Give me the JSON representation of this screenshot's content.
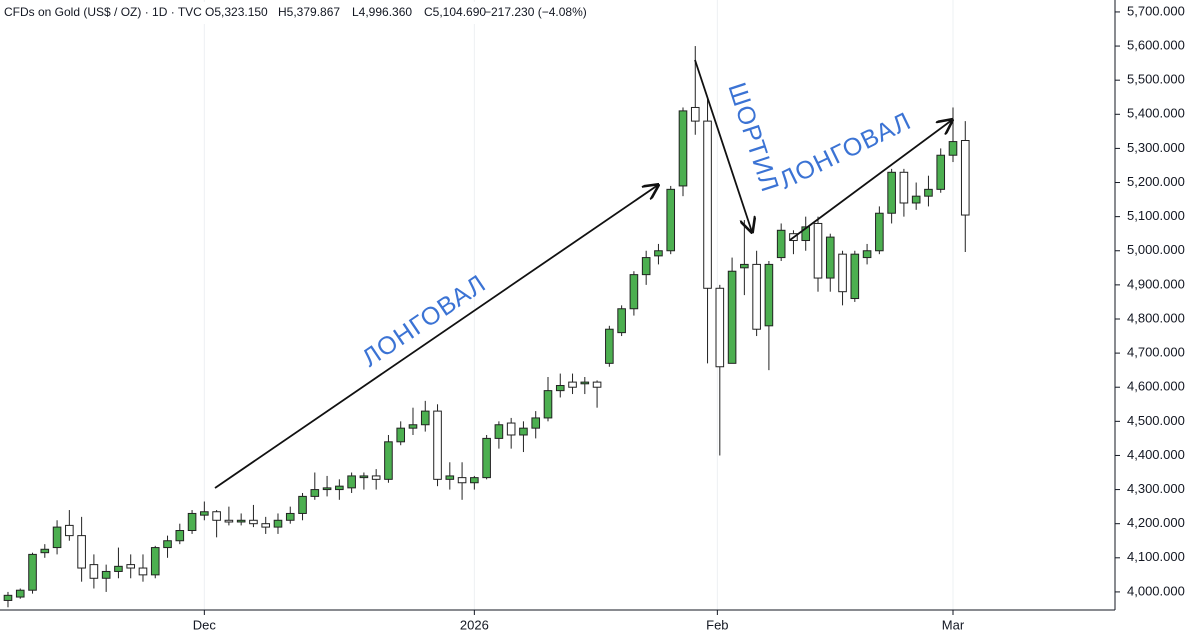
{
  "chart_data": {
    "type": "candlestick",
    "header": {
      "symbol": "CFDs on Gold (US$ / OZ) · 1D · TVC",
      "ohlc": [
        "O5,323.150",
        "H5,379.867",
        "L4,996.360",
        "C5,104.690"
      ],
      "change": "−217.230 (−4.08%)"
    },
    "annotations": [
      "ЛОНГОВАЛ",
      "ШОРТИЛ",
      "ЛОНГОВАЛ"
    ],
    "categories": [
      null,
      null,
      null,
      null,
      null,
      null,
      null,
      null,
      null,
      null,
      null,
      null,
      null,
      null,
      null,
      null,
      null,
      null,
      null,
      null,
      null,
      null,
      null,
      null,
      null,
      null,
      null,
      null,
      null,
      null,
      null,
      null,
      null,
      null,
      null,
      null,
      null,
      null,
      null,
      null,
      null,
      null,
      null,
      null,
      null,
      null,
      null,
      null,
      null,
      null,
      null,
      null,
      null,
      null,
      null,
      null,
      null,
      null,
      null,
      null,
      null,
      null,
      null,
      null,
      null,
      null,
      null,
      null,
      null,
      null,
      null,
      null,
      null,
      null,
      null,
      null,
      null,
      null,
      null
    ],
    "open": [
      3975,
      3985,
      4005,
      4115,
      4130,
      4195,
      4165,
      4080,
      4040,
      4060,
      4080,
      4070,
      4050,
      4130,
      4150,
      4180,
      4225,
      4235,
      4210,
      4205,
      4210,
      4200,
      4190,
      4210,
      4230,
      4280,
      4300,
      4300,
      4305,
      4335,
      4340,
      4330,
      4440,
      4480,
      4490,
      4530,
      4330,
      4335,
      4320,
      4335,
      4450,
      4495,
      4460,
      4480,
      4510,
      4590,
      4615,
      4610,
      4615,
      4670,
      4760,
      4830,
      4930,
      4985,
      5000,
      5190,
      5420,
      5380,
      4890,
      4670,
      4950,
      4960,
      4780,
      4980,
      5050,
      5030,
      5080,
      4920,
      4990,
      4860,
      4980,
      5000,
      5110,
      5230,
      5140,
      5160,
      5180,
      5280,
      5323.15
    ],
    "high": [
      4000,
      4010,
      4115,
      4140,
      4210,
      4240,
      4220,
      4110,
      4080,
      4130,
      4110,
      4110,
      4135,
      4165,
      4200,
      4240,
      4265,
      4240,
      4250,
      4230,
      4255,
      4220,
      4230,
      4250,
      4290,
      4350,
      4340,
      4330,
      4350,
      4350,
      4360,
      4460,
      4500,
      4540,
      4560,
      4550,
      4380,
      4380,
      4340,
      4460,
      4500,
      4510,
      4500,
      4530,
      4630,
      4640,
      4640,
      4630,
      4620,
      4780,
      4840,
      4940,
      5000,
      5020,
      5190,
      5420,
      5600,
      5450,
      4900,
      4980,
      5090,
      5000,
      4970,
      5080,
      5060,
      5100,
      5100,
      5050,
      5000,
      5000,
      5020,
      5130,
      5240,
      5240,
      5200,
      5220,
      5300,
      5420,
      5379.867
    ],
    "low": [
      3955,
      3980,
      3995,
      4100,
      4110,
      4150,
      4030,
      4010,
      4000,
      4040,
      4040,
      4030,
      4040,
      4100,
      4140,
      4170,
      4210,
      4160,
      4195,
      4195,
      4190,
      4170,
      4170,
      4200,
      4210,
      4270,
      4280,
      4270,
      4290,
      4300,
      4300,
      4320,
      4430,
      4460,
      4470,
      4310,
      4300,
      4270,
      4300,
      4330,
      4420,
      4420,
      4410,
      4450,
      4500,
      4570,
      4580,
      4580,
      4540,
      4660,
      4750,
      4810,
      4900,
      4960,
      4990,
      5160,
      5340,
      4670,
      4400,
      4670,
      4870,
      4750,
      4650,
      4970,
      4990,
      5000,
      4880,
      4880,
      4840,
      4850,
      4960,
      4990,
      5080,
      5100,
      5120,
      5130,
      5170,
      5260,
      4996.36
    ],
    "close": [
      3990,
      4005,
      4110,
      4125,
      4190,
      4165,
      4070,
      4040,
      4060,
      4075,
      4070,
      4050,
      4130,
      4150,
      4180,
      4230,
      4235,
      4210,
      4205,
      4210,
      4200,
      4190,
      4210,
      4230,
      4280,
      4300,
      4305,
      4310,
      4340,
      4340,
      4330,
      4440,
      4480,
      4490,
      4530,
      4330,
      4340,
      4320,
      4335,
      4450,
      4490,
      4460,
      4480,
      4510,
      4590,
      4605,
      4600,
      4615,
      4600,
      4770,
      4830,
      4930,
      4980,
      5000,
      5180,
      5410,
      5380,
      4890,
      4660,
      4940,
      4960,
      4770,
      4960,
      5060,
      5030,
      5070,
      4920,
      5040,
      4880,
      4990,
      5000,
      5110,
      5230,
      5140,
      5160,
      5180,
      5280,
      5320,
      5104.69
    ],
    "up_color": "#4caf50",
    "down_color": "#ffffff",
    "ylim": [
      3947,
      5735
    ],
    "yticks": [
      {
        "value": 4000,
        "label": "4,000.000"
      },
      {
        "value": 4100,
        "label": "4,100.000"
      },
      {
        "value": 4200,
        "label": "4,200.000"
      },
      {
        "value": 4300,
        "label": "4,300.000"
      },
      {
        "value": 4400,
        "label": "4,400.000"
      },
      {
        "value": 4500,
        "label": "4,500.000"
      },
      {
        "value": 4600,
        "label": "4,600.000"
      },
      {
        "value": 4700,
        "label": "4,700.000"
      },
      {
        "value": 4800,
        "label": "4,800.000"
      },
      {
        "value": 4900,
        "label": "4,900.000"
      },
      {
        "value": 5000,
        "label": "5,000.000"
      },
      {
        "value": 5100,
        "label": "5,100.000"
      },
      {
        "value": 5200,
        "label": "5,200.000"
      },
      {
        "value": 5300,
        "label": "5,300.000"
      },
      {
        "value": 5400,
        "label": "5,400.000"
      },
      {
        "value": 5500,
        "label": "5,500.000"
      },
      {
        "value": 5600,
        "label": "5,600.000"
      },
      {
        "value": 5700,
        "label": "5,700.000"
      }
    ],
    "xlim": [
      -0.65,
      90.2
    ],
    "xticks": [
      {
        "value": 16,
        "label": "Dec"
      },
      {
        "value": 38,
        "label": "2026"
      },
      {
        "value": 57.8,
        "label": "Feb"
      },
      {
        "value": 77,
        "label": "Mar"
      }
    ],
    "grid": true
  }
}
